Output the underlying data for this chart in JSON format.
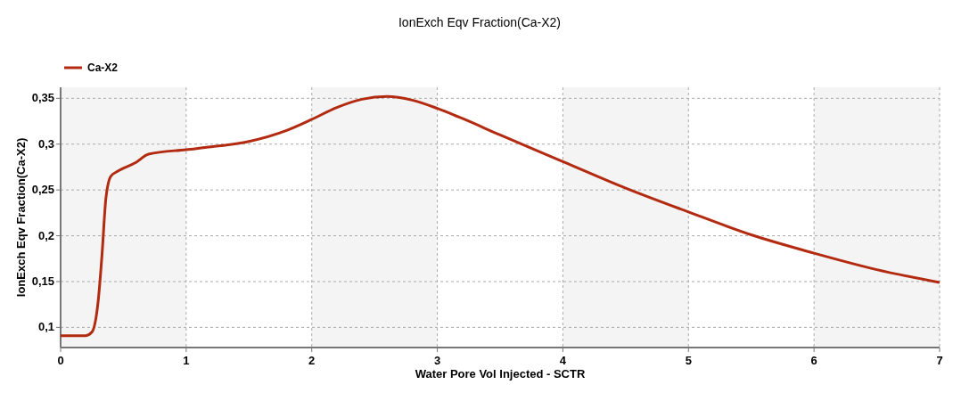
{
  "chart_data": {
    "type": "line",
    "title": "IonExch Eqv Fraction(Ca-X2)",
    "xlabel": "Water Pore Vol Injected - SCTR",
    "ylabel": "IonExch Eqv Fraction(Ca-X2)",
    "x": [
      0,
      0.2,
      0.25,
      0.3,
      0.33,
      0.36,
      0.4,
      0.45,
      0.6,
      0.7,
      1.0,
      1.2,
      1.5,
      1.8,
      2.0,
      2.2,
      2.4,
      2.6,
      2.8,
      3.0,
      3.2,
      3.5,
      4.0,
      4.5,
      5.0,
      5.5,
      6.0,
      6.5,
      7.0
    ],
    "series": [
      {
        "name": "Ca-X2",
        "color": "#b22a10",
        "values": [
          0.091,
          0.091,
          0.095,
          0.13,
          0.18,
          0.24,
          0.265,
          0.27,
          0.28,
          0.289,
          0.294,
          0.297,
          0.303,
          0.315,
          0.327,
          0.34,
          0.349,
          0.352,
          0.348,
          0.339,
          0.328,
          0.31,
          0.281,
          0.252,
          0.226,
          0.201,
          0.181,
          0.163,
          0.149
        ]
      }
    ],
    "xlim": [
      0,
      7
    ],
    "xticks": [
      0,
      1,
      2,
      3,
      4,
      5,
      6,
      7
    ],
    "ylim": [
      0.078,
      0.362
    ],
    "yticks": [
      {
        "value": 0.1,
        "label": "0,1"
      },
      {
        "value": 0.15,
        "label": "0,15"
      },
      {
        "value": 0.2,
        "label": "0,2"
      },
      {
        "value": 0.25,
        "label": "0,25"
      },
      {
        "value": 0.3,
        "label": "0,3"
      },
      {
        "value": 0.35,
        "label": "0,35"
      }
    ],
    "grid": true,
    "legend": "top left",
    "marker": "none",
    "line_style": "solid"
  }
}
